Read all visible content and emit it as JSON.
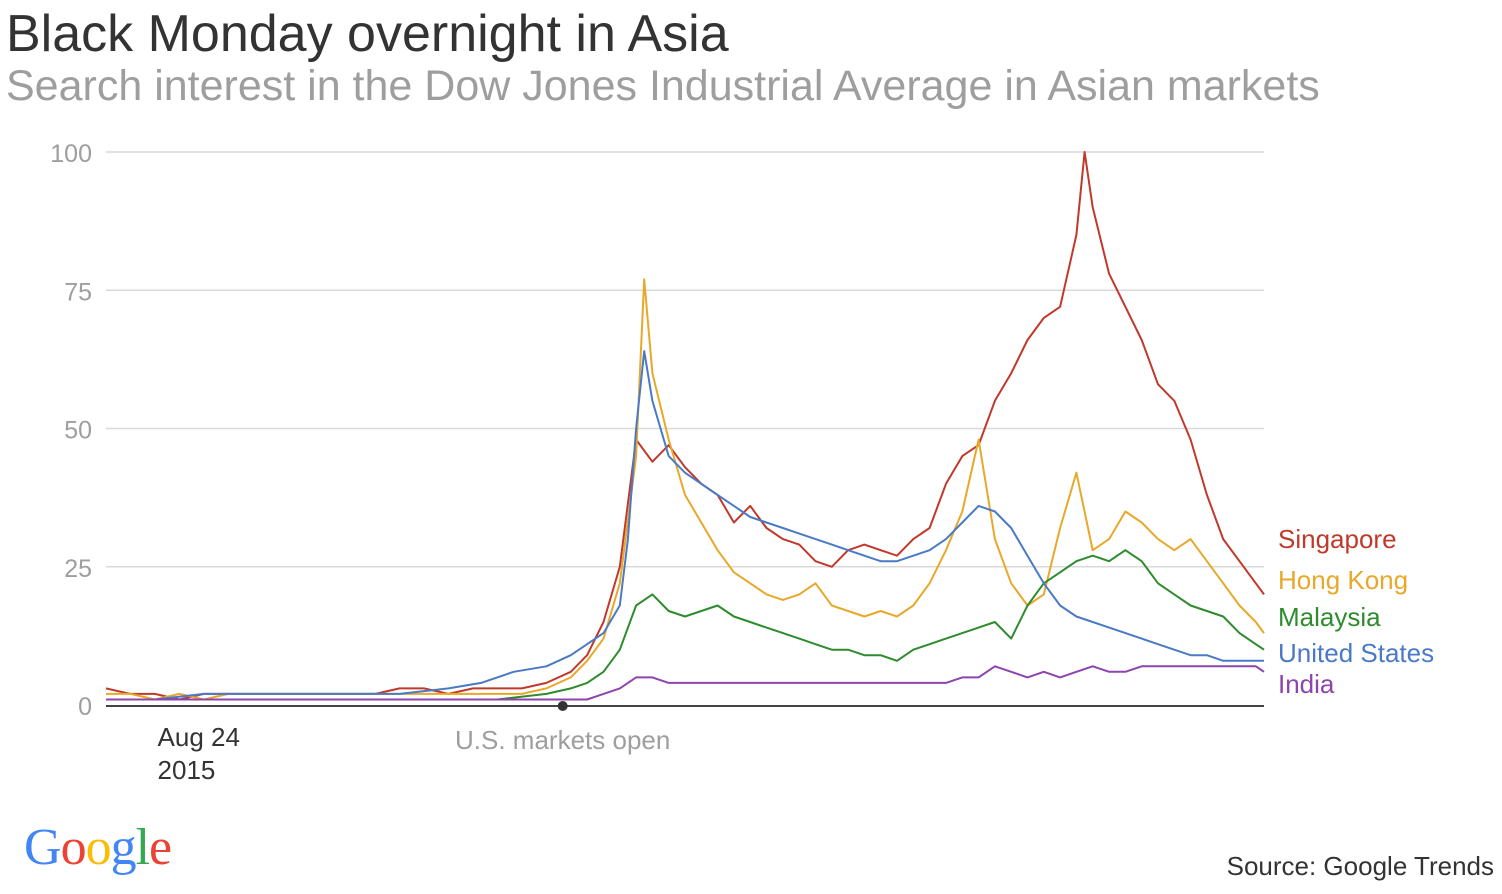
{
  "header": {
    "title": "Black Monday overnight in Asia",
    "subtitle": "Search interest in the Dow Jones Industrial Average in Asian markets"
  },
  "chart_data": {
    "type": "line",
    "title": "Black Monday overnight in Asia",
    "subtitle": "Search interest in the Dow Jones Industrial Average in Asian markets",
    "xlabel": "",
    "ylabel": "",
    "ylim": [
      0,
      100
    ],
    "yticks": [
      0,
      25,
      50,
      75,
      100
    ],
    "grid": true,
    "legend": "right, labels at line ends",
    "x_annotations": [
      {
        "text_lines": [
          "Aug 24",
          "2015"
        ],
        "x": 10
      },
      {
        "text": "U.S. markets open",
        "x": 56,
        "marker": "dot"
      }
    ],
    "series": [
      {
        "name": "Singapore",
        "color": "#c0392b",
        "points": [
          [
            0,
            3
          ],
          [
            3,
            2
          ],
          [
            6,
            2
          ],
          [
            9,
            1
          ],
          [
            12,
            2
          ],
          [
            15,
            2
          ],
          [
            18,
            2
          ],
          [
            21,
            2
          ],
          [
            24,
            2
          ],
          [
            27,
            2
          ],
          [
            30,
            2
          ],
          [
            33,
            2
          ],
          [
            36,
            3
          ],
          [
            39,
            3
          ],
          [
            42,
            2
          ],
          [
            45,
            3
          ],
          [
            48,
            3
          ],
          [
            51,
            3
          ],
          [
            54,
            4
          ],
          [
            57,
            6
          ],
          [
            59,
            9
          ],
          [
            61,
            15
          ],
          [
            63,
            25
          ],
          [
            65,
            48
          ],
          [
            67,
            44
          ],
          [
            69,
            47
          ],
          [
            71,
            43
          ],
          [
            73,
            40
          ],
          [
            75,
            38
          ],
          [
            77,
            33
          ],
          [
            79,
            36
          ],
          [
            81,
            32
          ],
          [
            83,
            30
          ],
          [
            85,
            29
          ],
          [
            87,
            26
          ],
          [
            89,
            25
          ],
          [
            91,
            28
          ],
          [
            93,
            29
          ],
          [
            95,
            28
          ],
          [
            97,
            27
          ],
          [
            99,
            30
          ],
          [
            101,
            32
          ],
          [
            103,
            40
          ],
          [
            105,
            45
          ],
          [
            107,
            47
          ],
          [
            109,
            55
          ],
          [
            111,
            60
          ],
          [
            113,
            66
          ],
          [
            115,
            70
          ],
          [
            117,
            72
          ],
          [
            119,
            85
          ],
          [
            120,
            100
          ],
          [
            121,
            90
          ],
          [
            123,
            78
          ],
          [
            125,
            72
          ],
          [
            127,
            66
          ],
          [
            129,
            58
          ],
          [
            131,
            55
          ],
          [
            133,
            48
          ],
          [
            135,
            38
          ],
          [
            137,
            30
          ],
          [
            139,
            26
          ],
          [
            141,
            22
          ],
          [
            142,
            20
          ]
        ]
      },
      {
        "name": "Hong Kong",
        "color": "#e8a82a",
        "points": [
          [
            0,
            2
          ],
          [
            3,
            2
          ],
          [
            6,
            1
          ],
          [
            9,
            2
          ],
          [
            12,
            1
          ],
          [
            15,
            2
          ],
          [
            18,
            2
          ],
          [
            21,
            2
          ],
          [
            24,
            2
          ],
          [
            27,
            2
          ],
          [
            30,
            2
          ],
          [
            33,
            2
          ],
          [
            36,
            2
          ],
          [
            39,
            2
          ],
          [
            42,
            2
          ],
          [
            45,
            2
          ],
          [
            48,
            2
          ],
          [
            51,
            2
          ],
          [
            54,
            3
          ],
          [
            57,
            5
          ],
          [
            59,
            8
          ],
          [
            61,
            12
          ],
          [
            63,
            22
          ],
          [
            65,
            45
          ],
          [
            66,
            77
          ],
          [
            67,
            60
          ],
          [
            69,
            48
          ],
          [
            71,
            38
          ],
          [
            73,
            33
          ],
          [
            75,
            28
          ],
          [
            77,
            24
          ],
          [
            79,
            22
          ],
          [
            81,
            20
          ],
          [
            83,
            19
          ],
          [
            85,
            20
          ],
          [
            87,
            22
          ],
          [
            89,
            18
          ],
          [
            91,
            17
          ],
          [
            93,
            16
          ],
          [
            95,
            17
          ],
          [
            97,
            16
          ],
          [
            99,
            18
          ],
          [
            101,
            22
          ],
          [
            103,
            28
          ],
          [
            105,
            35
          ],
          [
            107,
            48
          ],
          [
            109,
            30
          ],
          [
            111,
            22
          ],
          [
            113,
            18
          ],
          [
            115,
            20
          ],
          [
            117,
            32
          ],
          [
            119,
            42
          ],
          [
            121,
            28
          ],
          [
            123,
            30
          ],
          [
            125,
            35
          ],
          [
            127,
            33
          ],
          [
            129,
            30
          ],
          [
            131,
            28
          ],
          [
            133,
            30
          ],
          [
            135,
            26
          ],
          [
            137,
            22
          ],
          [
            139,
            18
          ],
          [
            141,
            15
          ],
          [
            142,
            13
          ]
        ]
      },
      {
        "name": "Malaysia",
        "color": "#2e8b2e",
        "points": [
          [
            0,
            1
          ],
          [
            6,
            1
          ],
          [
            12,
            1
          ],
          [
            18,
            1
          ],
          [
            24,
            1
          ],
          [
            30,
            1
          ],
          [
            36,
            1
          ],
          [
            42,
            1
          ],
          [
            48,
            1
          ],
          [
            54,
            2
          ],
          [
            57,
            3
          ],
          [
            59,
            4
          ],
          [
            61,
            6
          ],
          [
            63,
            10
          ],
          [
            65,
            18
          ],
          [
            67,
            20
          ],
          [
            69,
            17
          ],
          [
            71,
            16
          ],
          [
            73,
            17
          ],
          [
            75,
            18
          ],
          [
            77,
            16
          ],
          [
            79,
            15
          ],
          [
            81,
            14
          ],
          [
            83,
            13
          ],
          [
            85,
            12
          ],
          [
            87,
            11
          ],
          [
            89,
            10
          ],
          [
            91,
            10
          ],
          [
            93,
            9
          ],
          [
            95,
            9
          ],
          [
            97,
            8
          ],
          [
            99,
            10
          ],
          [
            101,
            11
          ],
          [
            103,
            12
          ],
          [
            105,
            13
          ],
          [
            107,
            14
          ],
          [
            109,
            15
          ],
          [
            111,
            12
          ],
          [
            113,
            18
          ],
          [
            115,
            22
          ],
          [
            117,
            24
          ],
          [
            119,
            26
          ],
          [
            121,
            27
          ],
          [
            123,
            26
          ],
          [
            125,
            28
          ],
          [
            127,
            26
          ],
          [
            129,
            22
          ],
          [
            131,
            20
          ],
          [
            133,
            18
          ],
          [
            135,
            17
          ],
          [
            137,
            16
          ],
          [
            139,
            13
          ],
          [
            141,
            11
          ],
          [
            142,
            10
          ]
        ]
      },
      {
        "name": "United States",
        "color": "#4a7ac6",
        "points": [
          [
            0,
            1
          ],
          [
            6,
            1
          ],
          [
            12,
            2
          ],
          [
            18,
            2
          ],
          [
            24,
            2
          ],
          [
            30,
            2
          ],
          [
            36,
            2
          ],
          [
            42,
            3
          ],
          [
            46,
            4
          ],
          [
            50,
            6
          ],
          [
            54,
            7
          ],
          [
            57,
            9
          ],
          [
            59,
            11
          ],
          [
            61,
            13
          ],
          [
            63,
            18
          ],
          [
            64,
            30
          ],
          [
            65,
            50
          ],
          [
            66,
            64
          ],
          [
            67,
            55
          ],
          [
            69,
            45
          ],
          [
            71,
            42
          ],
          [
            73,
            40
          ],
          [
            75,
            38
          ],
          [
            77,
            36
          ],
          [
            79,
            34
          ],
          [
            81,
            33
          ],
          [
            83,
            32
          ],
          [
            85,
            31
          ],
          [
            87,
            30
          ],
          [
            89,
            29
          ],
          [
            91,
            28
          ],
          [
            93,
            27
          ],
          [
            95,
            26
          ],
          [
            97,
            26
          ],
          [
            99,
            27
          ],
          [
            101,
            28
          ],
          [
            103,
            30
          ],
          [
            105,
            33
          ],
          [
            107,
            36
          ],
          [
            109,
            35
          ],
          [
            111,
            32
          ],
          [
            113,
            27
          ],
          [
            115,
            22
          ],
          [
            117,
            18
          ],
          [
            119,
            16
          ],
          [
            121,
            15
          ],
          [
            123,
            14
          ],
          [
            125,
            13
          ],
          [
            127,
            12
          ],
          [
            129,
            11
          ],
          [
            131,
            10
          ],
          [
            133,
            9
          ],
          [
            135,
            9
          ],
          [
            137,
            8
          ],
          [
            139,
            8
          ],
          [
            141,
            8
          ],
          [
            142,
            8
          ]
        ]
      },
      {
        "name": "India",
        "color": "#8e44ad",
        "points": [
          [
            0,
            1
          ],
          [
            6,
            1
          ],
          [
            12,
            1
          ],
          [
            18,
            1
          ],
          [
            24,
            1
          ],
          [
            30,
            1
          ],
          [
            36,
            1
          ],
          [
            42,
            1
          ],
          [
            48,
            1
          ],
          [
            54,
            1
          ],
          [
            57,
            1
          ],
          [
            59,
            1
          ],
          [
            61,
            2
          ],
          [
            63,
            3
          ],
          [
            65,
            5
          ],
          [
            67,
            5
          ],
          [
            69,
            4
          ],
          [
            71,
            4
          ],
          [
            73,
            4
          ],
          [
            75,
            4
          ],
          [
            77,
            4
          ],
          [
            79,
            4
          ],
          [
            81,
            4
          ],
          [
            83,
            4
          ],
          [
            85,
            4
          ],
          [
            87,
            4
          ],
          [
            89,
            4
          ],
          [
            91,
            4
          ],
          [
            93,
            4
          ],
          [
            95,
            4
          ],
          [
            97,
            4
          ],
          [
            99,
            4
          ],
          [
            101,
            4
          ],
          [
            103,
            4
          ],
          [
            105,
            5
          ],
          [
            107,
            5
          ],
          [
            109,
            7
          ],
          [
            111,
            6
          ],
          [
            113,
            5
          ],
          [
            115,
            6
          ],
          [
            117,
            5
          ],
          [
            119,
            6
          ],
          [
            121,
            7
          ],
          [
            123,
            6
          ],
          [
            125,
            6
          ],
          [
            127,
            7
          ],
          [
            129,
            7
          ],
          [
            131,
            7
          ],
          [
            133,
            7
          ],
          [
            135,
            7
          ],
          [
            137,
            7
          ],
          [
            139,
            7
          ],
          [
            141,
            7
          ],
          [
            142,
            6
          ]
        ]
      }
    ],
    "source": "Source: Google Trends"
  },
  "footer": {
    "source": "Source: Google Trends",
    "logo_text": "Google",
    "logo_colors": [
      "#4285f4",
      "#ea4335",
      "#fbbc05",
      "#4285f4",
      "#34a853",
      "#ea4335"
    ]
  }
}
